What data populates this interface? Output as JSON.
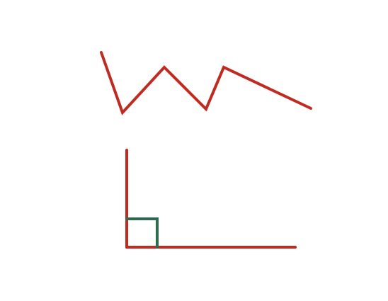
{
  "figures": [
    {
      "id": "zigzag",
      "kind": "polyline",
      "color": "#bf2b22",
      "description_key": "zigzag-line"
    },
    {
      "id": "angle",
      "kind": "right-angle",
      "color": "#bf2b22",
      "marker_color": "#2e6a4e"
    }
  ]
}
